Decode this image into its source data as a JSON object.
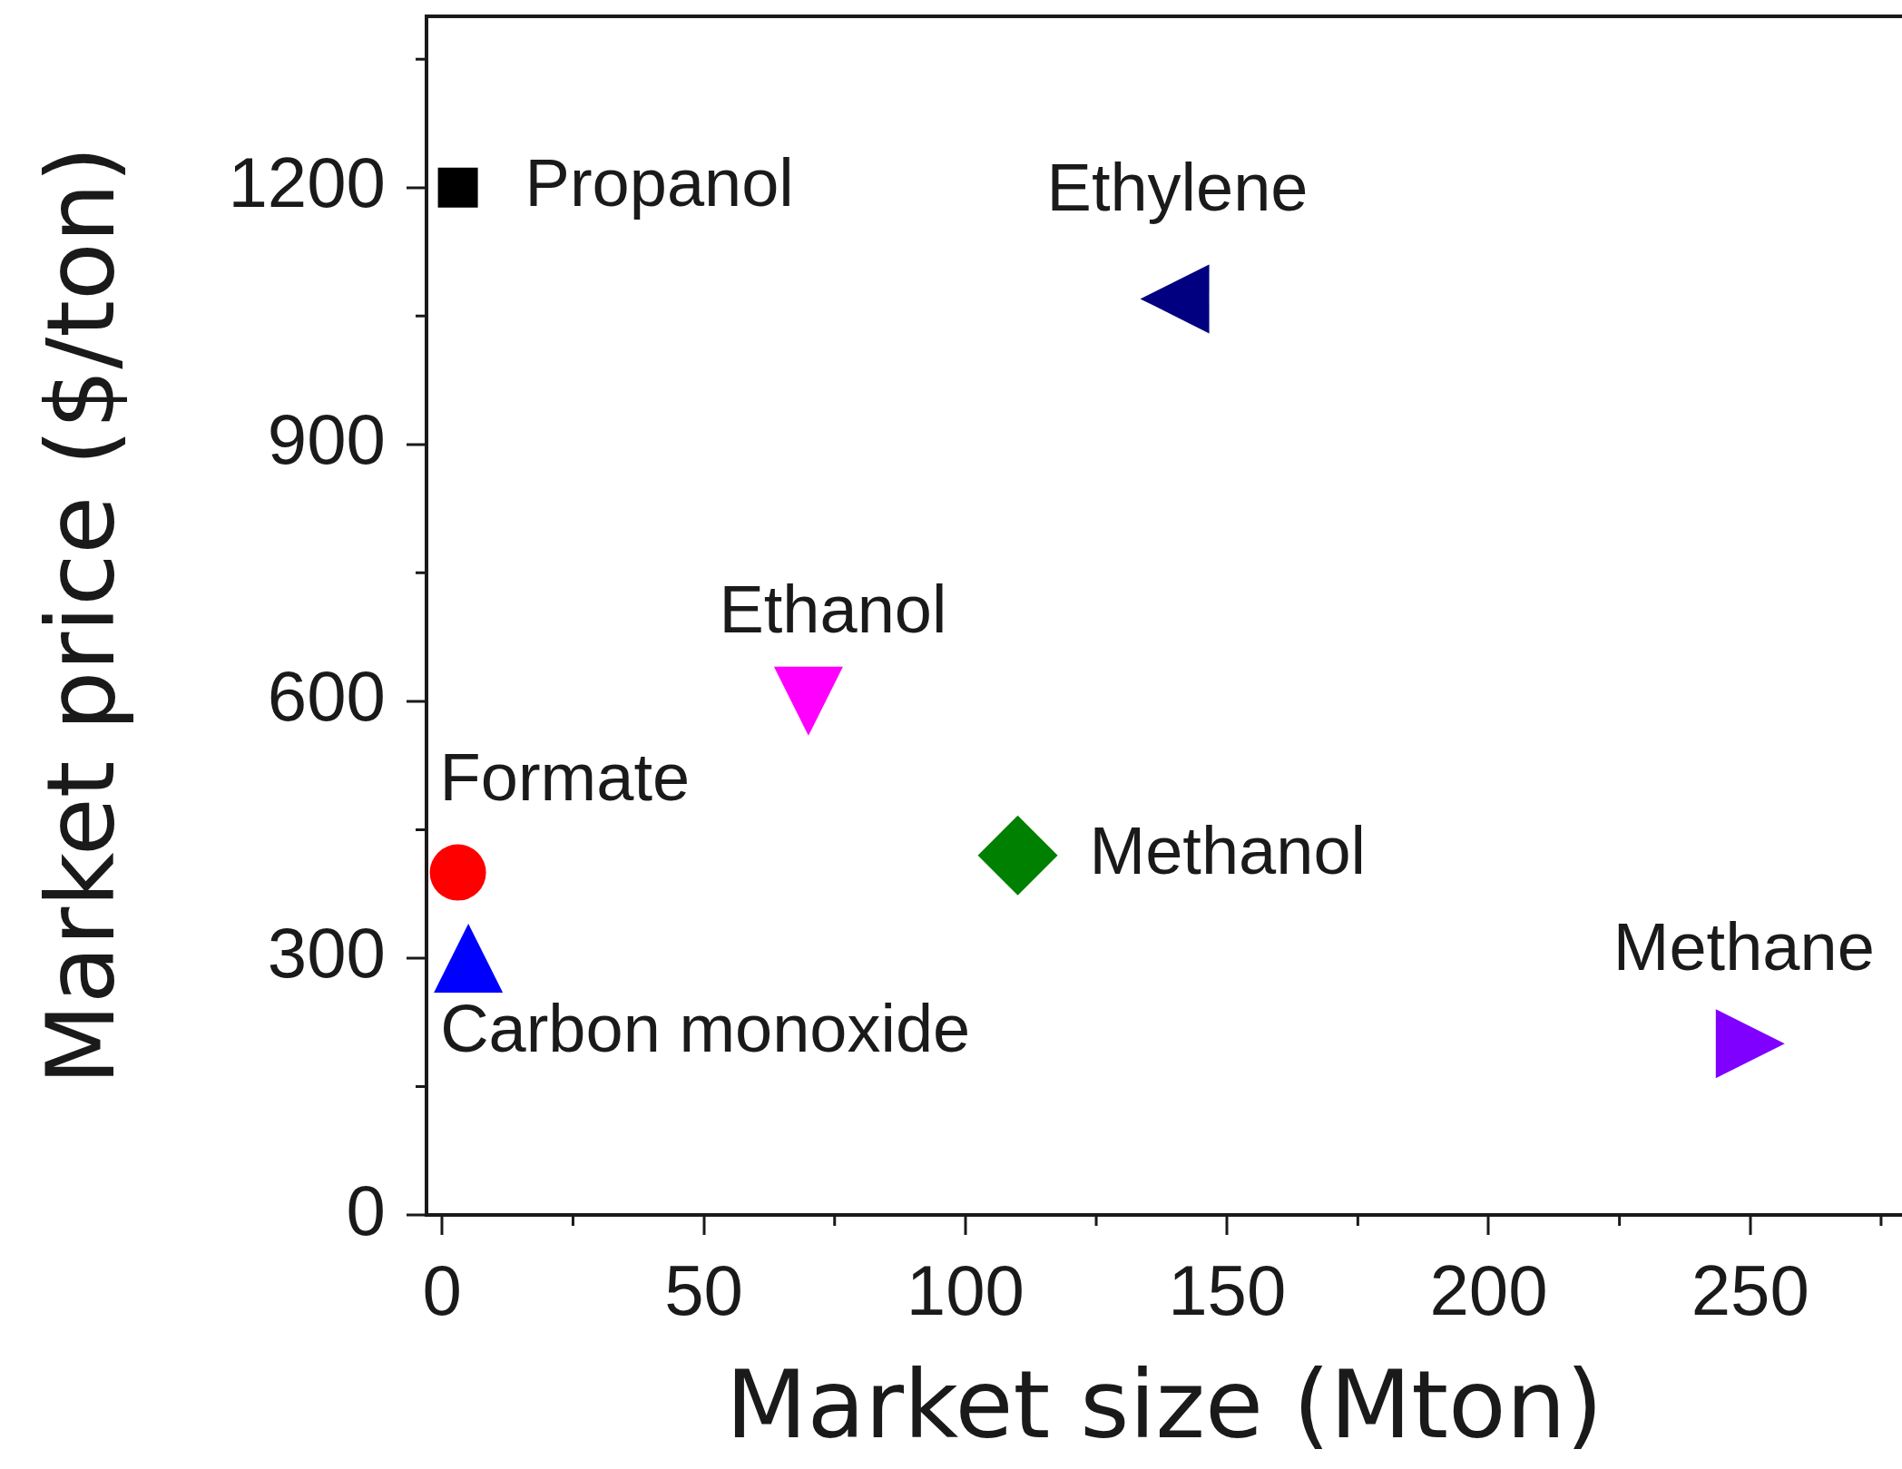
{
  "chart_data": {
    "type": "scatter",
    "xlabel": "Market size (Mton)",
    "ylabel": "Market price ($/ton)",
    "xlim": [
      -3,
      279
    ],
    "ylim": [
      0,
      1400
    ],
    "xticks": [
      0,
      {
        "value": 25,
        "label": null
      },
      50,
      {
        "value": 75,
        "label": null
      },
      100,
      {
        "value": 125,
        "label": null
      },
      150,
      {
        "value": 175,
        "label": null
      },
      200,
      {
        "value": 225,
        "label": null
      },
      250,
      {
        "value": 275,
        "label": null
      }
    ],
    "yticks": [
      0,
      {
        "value": 150,
        "label": null
      },
      300,
      {
        "value": 450,
        "label": null
      },
      600,
      {
        "value": 750,
        "label": null
      },
      900,
      {
        "value": 1050,
        "label": null
      },
      1200,
      {
        "value": 1350,
        "label": null
      }
    ],
    "series": [
      {
        "name": "Propanol",
        "color": "#000000",
        "marker": "square",
        "x": [
          3
        ],
        "values": [
          1200
        ]
      },
      {
        "name": "Ethylene",
        "color": "#000080",
        "marker": "triangle-left",
        "x": [
          140
        ],
        "values": [
          1070
        ]
      },
      {
        "name": "Ethanol",
        "color": "#ff00ff",
        "marker": "triangle-down",
        "x": [
          70
        ],
        "values": [
          600
        ]
      },
      {
        "name": "Formate",
        "color": "#ff0000",
        "marker": "circle",
        "x": [
          3
        ],
        "values": [
          400
        ]
      },
      {
        "name": "Methanol",
        "color": "#008000",
        "marker": "diamond",
        "x": [
          110
        ],
        "values": [
          420
        ]
      },
      {
        "name": "Carbon monoxide",
        "color": "#0000ff",
        "marker": "triangle",
        "x": [
          5
        ],
        "values": [
          300
        ]
      },
      {
        "name": "Methane",
        "color": "#8000ff",
        "marker": "triangle-right",
        "x": [
          250
        ],
        "values": [
          200
        ]
      }
    ]
  }
}
